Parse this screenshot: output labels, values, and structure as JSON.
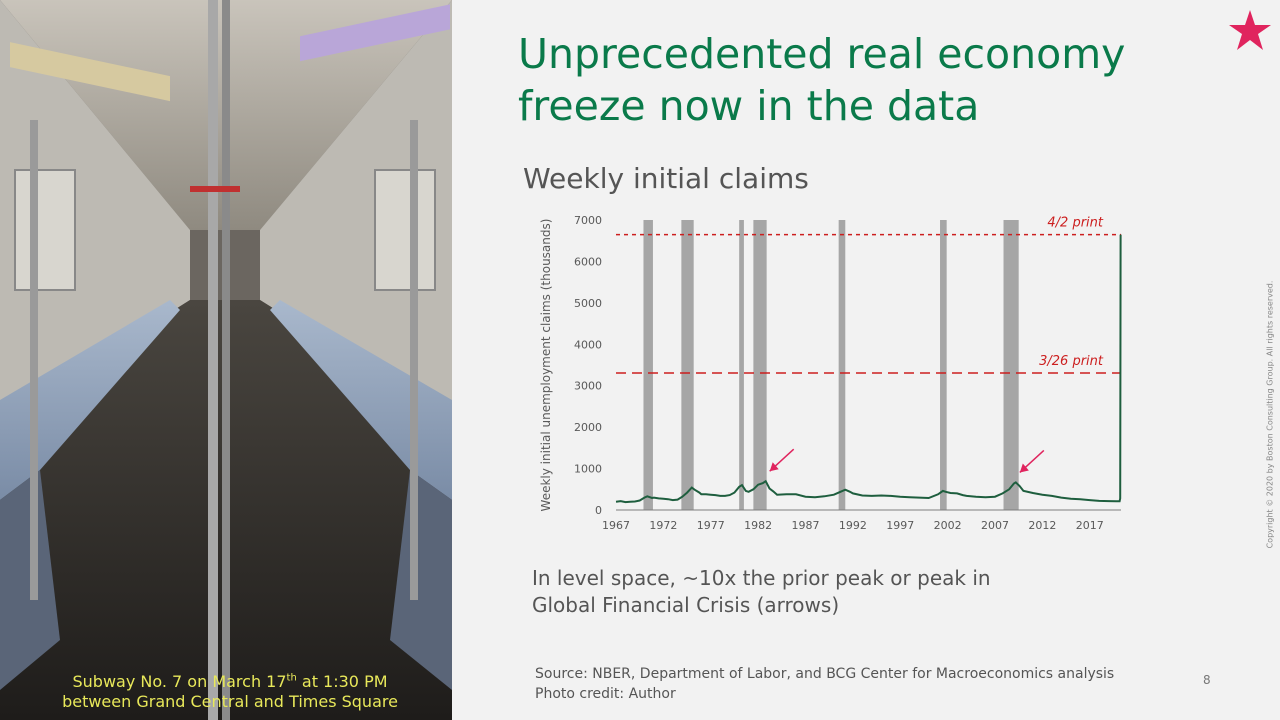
{
  "slide": {
    "title_line1": "Unprecedented real economy",
    "title_line2": "freeze now in the data",
    "chart_heading": "Weekly initial claims",
    "note_line1": "In level space, ~10x the prior peak or peak in",
    "note_line2": "Global Financial Crisis (arrows)",
    "source": "Source: NBER, Department of Labor, and BCG Center for Macroeconomics analysis",
    "photo_credit": "Photo credit: Author",
    "page_number": "8",
    "copyright": "Copyright © 2020 by Boston Consulting Group. All rights reserved."
  },
  "photo": {
    "caption_line1_pre": "Subway No. 7 on March 17",
    "caption_line1_sup": "th",
    "caption_line1_post": " at 1:30 PM",
    "caption_line2": "between Grand Central and Times Square",
    "caption_color": "#e8e85a"
  },
  "branding": {
    "star_icon": "star-icon",
    "star_color": "#e0245e"
  },
  "colors": {
    "title": "#0a7a4a",
    "series": "#1e5e3e",
    "recession": "#a6a6a6",
    "reference": "#cc1f1f"
  },
  "chart_data": {
    "type": "line",
    "ylabel": "Weekly initial unemployment claims (thousands)",
    "ylim": [
      0,
      7000
    ],
    "yticks": [
      0,
      1000,
      2000,
      3000,
      4000,
      5000,
      6000,
      7000
    ],
    "xlim": [
      1967,
      2020.3
    ],
    "xticks": [
      1967,
      1972,
      1977,
      1982,
      1987,
      1992,
      1997,
      2002,
      2007,
      2012,
      2017
    ],
    "grid": false,
    "recessions": [
      [
        1969.9,
        1970.9
      ],
      [
        1973.9,
        1975.2
      ],
      [
        1980.0,
        1980.5
      ],
      [
        1981.5,
        1982.9
      ],
      [
        1990.5,
        1991.2
      ],
      [
        2001.2,
        2001.9
      ],
      [
        2007.9,
        2009.5
      ]
    ],
    "reference_lines": [
      {
        "label": "4/2 print",
        "value": 6648,
        "style": "dotted"
      },
      {
        "label": "3/26 print",
        "value": 3307,
        "style": "dashed"
      }
    ],
    "arrows_at": [
      [
        1982.8,
        695
      ],
      [
        2009.2,
        665
      ]
    ],
    "series": [
      {
        "x": [
          1967,
          1967.5,
          1968,
          1968.5,
          1969,
          1969.5,
          1970,
          1970.3,
          1970.8,
          1971,
          1971.5,
          1972,
          1972.5,
          1973,
          1973.5,
          1974,
          1974.5,
          1975,
          1975.3,
          1975.8,
          1976,
          1976.5,
          1977,
          1977.5,
          1978,
          1978.5,
          1979,
          1979.5,
          1980,
          1980.3,
          1980.7,
          1981,
          1981.5,
          1982,
          1982.5,
          1982.8,
          1983.2,
          1983.6,
          1984,
          1985,
          1986,
          1987,
          1988,
          1989,
          1990,
          1990.5,
          1991.2,
          1991.7,
          1992,
          1993,
          1994,
          1995,
          1996,
          1997,
          1998,
          1999,
          2000,
          2001,
          2001.5,
          2001.8,
          2002.3,
          2003,
          2003.6,
          2004,
          2005,
          2006,
          2007,
          2007.8,
          2008.5,
          2009.0,
          2009.2,
          2009.6,
          2010,
          2011,
          2012,
          2013,
          2014,
          2015,
          2016,
          2017,
          2018,
          2019,
          2019.8,
          2020.15,
          2020.22,
          2020.24,
          2020.26
        ],
        "y": [
          200,
          215,
          190,
          200,
          205,
          230,
          300,
          330,
          290,
          300,
          280,
          270,
          260,
          240,
          250,
          320,
          420,
          540,
          490,
          420,
          380,
          380,
          370,
          360,
          340,
          340,
          360,
          420,
          560,
          600,
          460,
          440,
          500,
          610,
          650,
          695,
          520,
          450,
          370,
          380,
          380,
          320,
          310,
          330,
          370,
          420,
          490,
          440,
          400,
          350,
          340,
          350,
          340,
          320,
          310,
          300,
          290,
          380,
          460,
          440,
          410,
          400,
          360,
          340,
          320,
          310,
          320,
          400,
          500,
          640,
          665,
          580,
          460,
          410,
          370,
          340,
          300,
          270,
          260,
          240,
          220,
          215,
          210,
          210,
          280,
          3307,
          6648
        ]
      }
    ]
  }
}
